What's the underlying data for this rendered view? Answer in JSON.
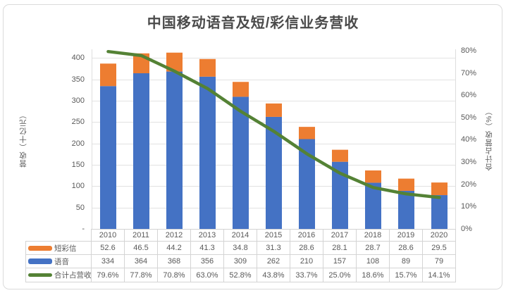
{
  "title": "中国移动语音及短/彩信业务营收",
  "chart_data": {
    "type": "bar",
    "subtype": "stacked-bar-with-line",
    "title": "中国移动语音及短/彩信业务营收",
    "categories": [
      "2010",
      "2011",
      "2012",
      "2013",
      "2014",
      "2015",
      "2016",
      "2017",
      "2018",
      "2019",
      "2020"
    ],
    "series": [
      {
        "name": "短彩信",
        "type": "bar",
        "axis": "left",
        "color": "#ED7D31",
        "values": [
          52.6,
          46.5,
          44.2,
          41.3,
          34.8,
          31.3,
          28.6,
          28.1,
          28.7,
          28.6,
          29.5
        ],
        "display": [
          "52.6",
          "46.5",
          "44.2",
          "41.3",
          "34.8",
          "31.3",
          "28.6",
          "28.1",
          "28.7",
          "28.6",
          "29.5"
        ]
      },
      {
        "name": "语音",
        "type": "bar",
        "axis": "left",
        "color": "#4472C4",
        "values": [
          334,
          364,
          368,
          356,
          309,
          262,
          210,
          157,
          108,
          89,
          79
        ],
        "display": [
          "334",
          "364",
          "368",
          "356",
          "309",
          "262",
          "210",
          "157",
          "108",
          "89",
          "79"
        ]
      },
      {
        "name": "合计占营收",
        "type": "line",
        "axis": "right",
        "color": "#548235",
        "values": [
          79.6,
          77.8,
          70.8,
          63.0,
          52.8,
          43.8,
          33.7,
          25.0,
          18.6,
          15.7,
          14.1
        ],
        "display": [
          "79.6%",
          "77.8%",
          "70.8%",
          "63.0%",
          "52.8%",
          "43.8%",
          "33.7%",
          "25.0%",
          "18.6%",
          "15.7%",
          "14.1%"
        ]
      }
    ],
    "left_axis": {
      "title": "营收（十亿元）",
      "tick_labels": [
        "400",
        "350",
        "300",
        "250",
        "200",
        "150",
        "100",
        "50",
        "-"
      ],
      "tick_values": [
        400,
        350,
        300,
        250,
        200,
        150,
        100,
        50,
        0
      ],
      "min": 0,
      "max": 420
    },
    "right_axis": {
      "title": "合计占营收（%）",
      "tick_labels": [
        "80%",
        "70%",
        "60%",
        "50%",
        "40%",
        "30%",
        "20%",
        "10%",
        "0%"
      ],
      "tick_values": [
        80,
        70,
        60,
        50,
        40,
        30,
        20,
        10,
        0
      ],
      "min": 0,
      "max": 80.6
    },
    "grid": true,
    "legend_position": "table-left",
    "stack_order_bottom_to_top": [
      "语音",
      "短彩信"
    ]
  }
}
